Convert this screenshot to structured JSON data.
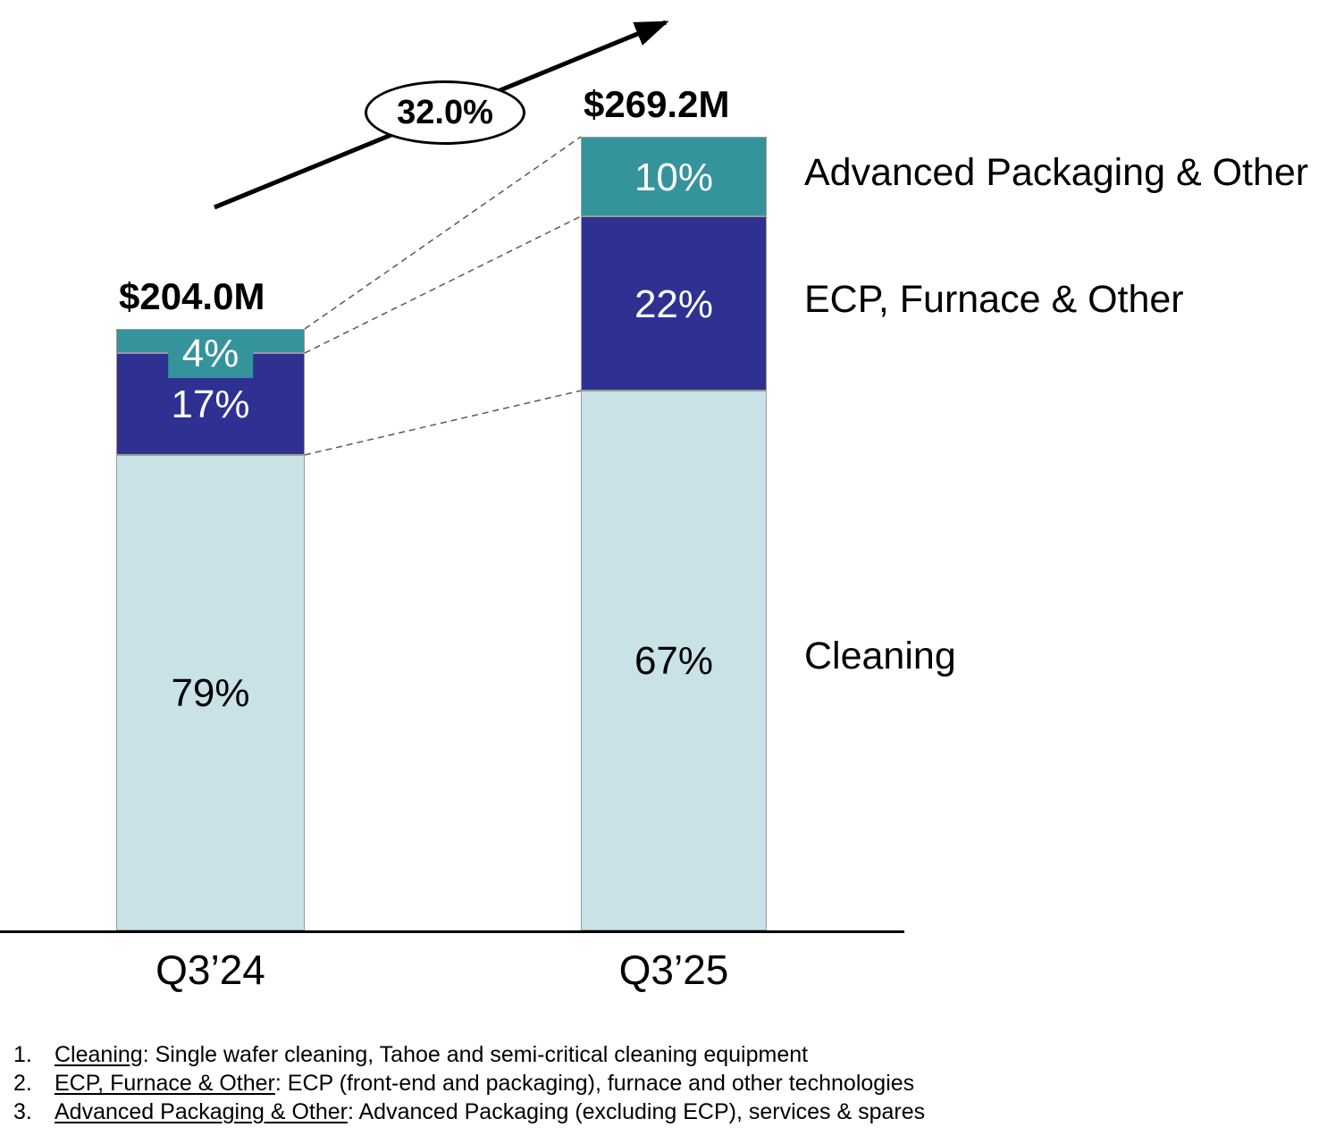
{
  "chart_data": {
    "type": "bar",
    "stacked": true,
    "categories": [
      "Q3’24",
      "Q3’25"
    ],
    "totals": [
      "$204.0M",
      "$269.2M"
    ],
    "total_values": [
      204.0,
      269.2
    ],
    "growth_label": "32.0%",
    "ylim": [
      0,
      290
    ],
    "legend_position": "right-labels",
    "series": [
      {
        "name": "Cleaning",
        "color": "#c9e2e8",
        "text_color": "#000000",
        "values": [
          79,
          67
        ]
      },
      {
        "name": "ECP, Furnace & Other",
        "color": "#2e3192",
        "text_color": "#ffffff",
        "values": [
          17,
          22
        ]
      },
      {
        "name": "Advanced Packaging & Other",
        "color": "#35939c",
        "text_color": "#ffffff",
        "values": [
          4,
          10
        ]
      }
    ]
  },
  "footnotes": [
    {
      "num": "1.",
      "term": "Cleaning",
      "rest": ": Single wafer cleaning, Tahoe and semi-critical cleaning equipment"
    },
    {
      "num": "2.",
      "term": "ECP, Furnace & Other",
      "rest": ": ECP (front-end and packaging), furnace and other technologies"
    },
    {
      "num": "3.",
      "term": "Advanced Packaging & Other",
      "rest": ": Advanced Packaging (excluding ECP), services & spares"
    }
  ]
}
